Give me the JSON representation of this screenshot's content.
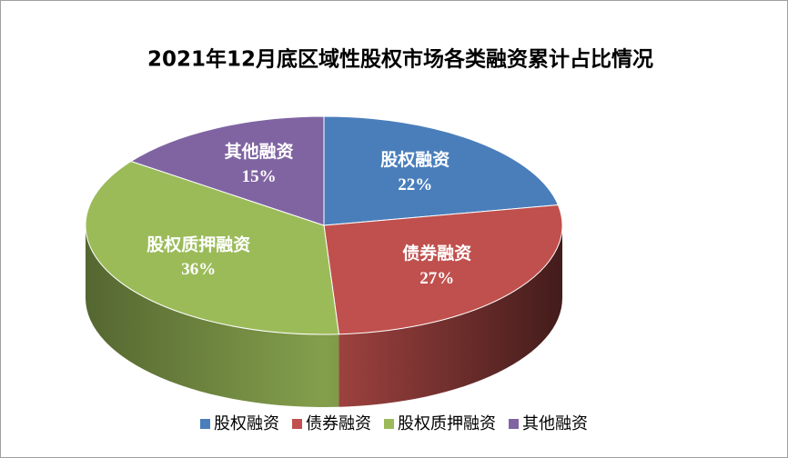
{
  "chart_data": {
    "type": "pie",
    "title": "2021年12月底区域性股权市场各类融资累计占比情况",
    "categories": [
      "股权融资",
      "债券融资",
      "股权质押融资",
      "其他融资"
    ],
    "values": [
      22,
      27,
      36,
      15
    ],
    "value_labels": [
      "22%",
      "27%",
      "36%",
      "15%"
    ],
    "colors": [
      "#4a7ebb",
      "#c0504d",
      "#9bbb59",
      "#8064a2"
    ],
    "legend": "bottom"
  }
}
